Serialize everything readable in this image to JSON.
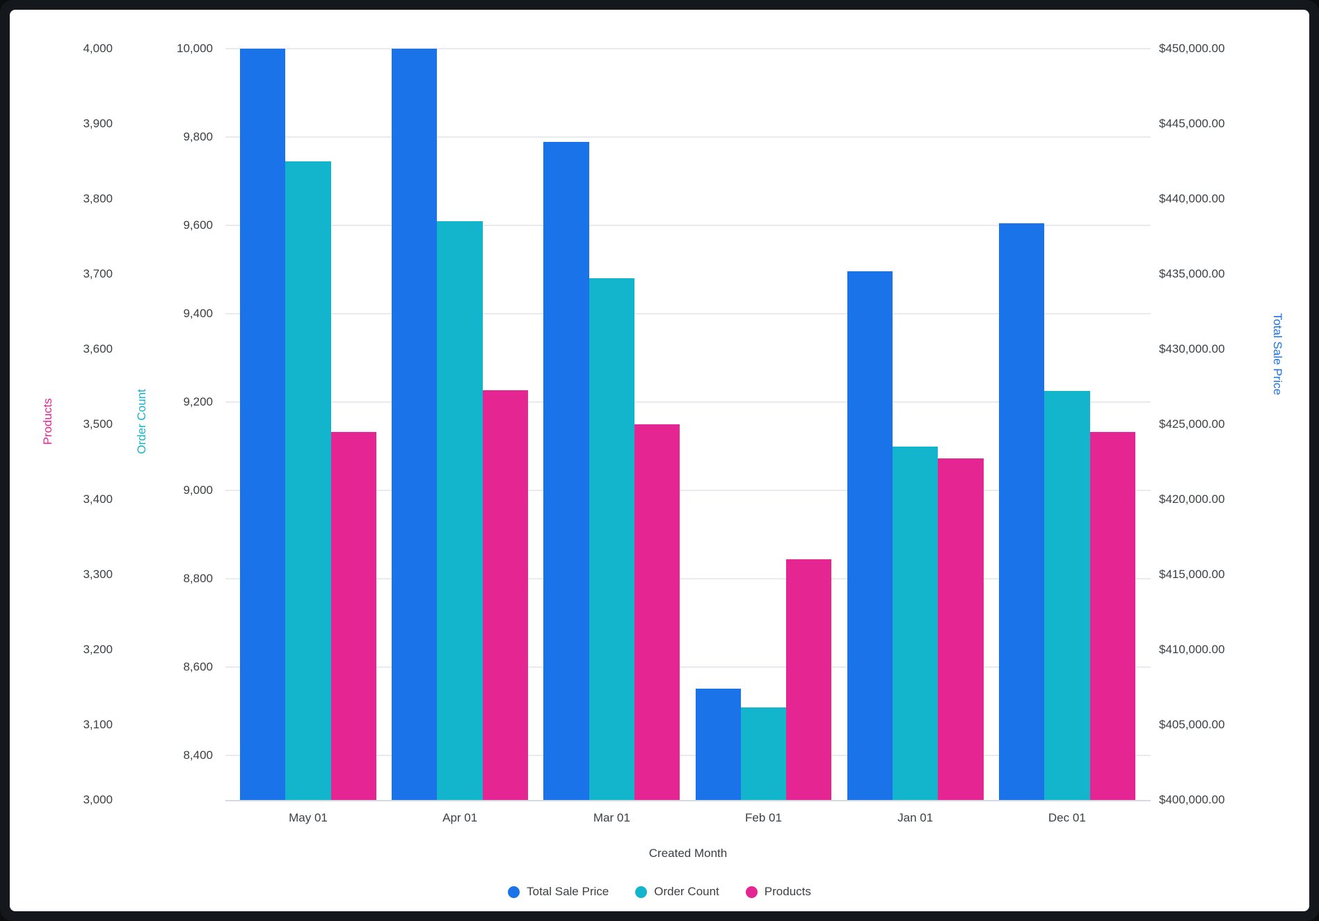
{
  "frame": {
    "background": "#14171b"
  },
  "card": {
    "background": "#ffffff"
  },
  "chart_data": {
    "type": "bar",
    "title": "",
    "xlabel": "Created Month",
    "grid": true,
    "legend_position": "bottom",
    "categories": [
      "May 01",
      "Apr 01",
      "Mar 01",
      "Feb 01",
      "Jan 01",
      "Dec 01"
    ],
    "series": [
      {
        "name": "Total Sale Price",
        "axis": "price",
        "color": "#1A73E8",
        "values": [
          450000,
          450000,
          443800,
          407400,
          435200,
          438400
        ]
      },
      {
        "name": "Order Count",
        "axis": "orders",
        "color": "#12B5CB",
        "values": [
          9745,
          9610,
          9480,
          8510,
          9100,
          9225
        ]
      },
      {
        "name": "Products",
        "axis": "products",
        "color": "#E52592",
        "values": [
          3490,
          3545,
          3500,
          3320,
          3455,
          3490
        ]
      }
    ],
    "axes": {
      "products": {
        "title": "Products",
        "side": "left",
        "min": 3000,
        "max": 4000,
        "color": "#E52592",
        "tick_labels": [
          "4,000",
          "3,900",
          "3,800",
          "3,700",
          "3,600",
          "3,500",
          "3,400",
          "3,300",
          "3,200",
          "3,100",
          "3,000"
        ]
      },
      "orders": {
        "title": "Order Count",
        "side": "left",
        "min": 8300,
        "max": 10000,
        "color": "#12B5CB",
        "tick_labels": [
          "10,000",
          "9,800",
          "9,600",
          "9,400",
          "9,200",
          "9,000",
          "8,800",
          "8,600",
          "8,400"
        ]
      },
      "price": {
        "title": "Total Sale Price",
        "side": "right",
        "min": 400000,
        "max": 450000,
        "color": "#1A73E8",
        "tick_labels": [
          "$450,000.00",
          "$445,000.00",
          "$440,000.00",
          "$435,000.00",
          "$430,000.00",
          "$425,000.00",
          "$420,000.00",
          "$415,000.00",
          "$410,000.00",
          "$405,000.00",
          "$400,000.00"
        ]
      }
    },
    "gridline_axis": "orders",
    "legend": [
      "Total Sale Price",
      "Order Count",
      "Products"
    ]
  }
}
